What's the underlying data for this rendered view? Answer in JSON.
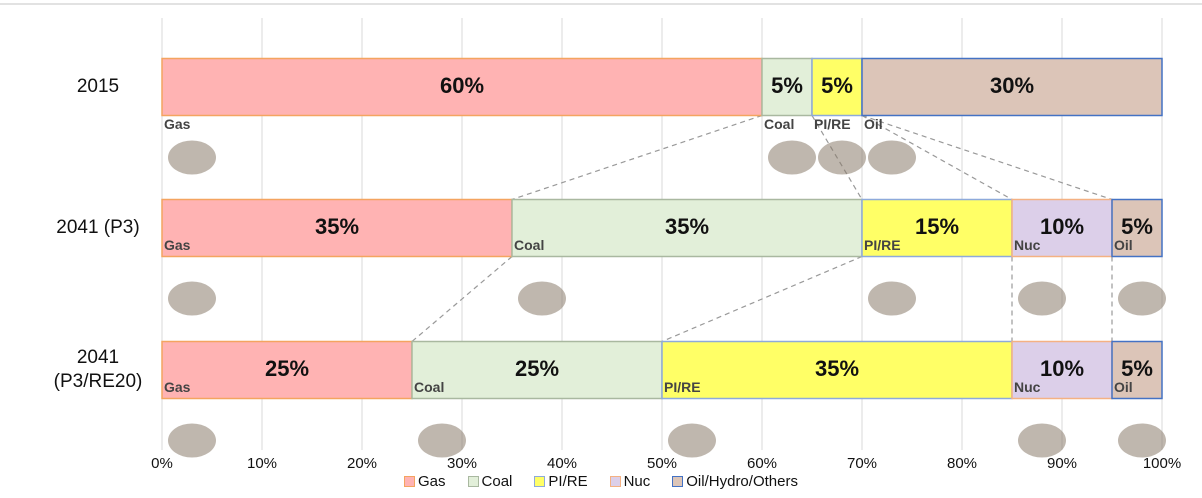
{
  "chart_data": {
    "type": "stacked-bar-horizontal",
    "categories": [
      "2015",
      "2041 (P3)",
      "2041 (P3/RE20)"
    ],
    "series": [
      {
        "name": "Gas",
        "icon_label": "Gas",
        "color": "#ffb3b3",
        "edge": "#f4a460",
        "values": [
          60,
          35,
          25
        ],
        "value_labels": [
          "60%",
          "35%",
          "25%"
        ]
      },
      {
        "name": "Coal",
        "icon_label": "Coal",
        "color": "#e2efd9",
        "edge": "#a9b8a0",
        "values": [
          5,
          35,
          25
        ],
        "value_labels": [
          "5%",
          "35%",
          "25%"
        ]
      },
      {
        "name": "PI/RE",
        "icon_label": "PI/RE",
        "color": "#ffff66",
        "edge": "#8eaadb",
        "values": [
          5,
          15,
          35
        ],
        "value_labels": [
          "5%",
          "15%",
          "35%"
        ]
      },
      {
        "name": "Nuc",
        "icon_label": "Nuc",
        "color": "#dccfe9",
        "edge": "#f4b183",
        "values": [
          0,
          10,
          10
        ],
        "value_labels": [
          null,
          "10%",
          "10%"
        ]
      },
      {
        "name": "Oil/Hydro/Others",
        "icon_label": "Oil",
        "color": "#dcc5b8",
        "edge": "#4472c4",
        "values": [
          30,
          5,
          5
        ],
        "value_labels": [
          "30%",
          "5%",
          "5%"
        ]
      }
    ],
    "xlim": [
      0,
      100
    ],
    "xticks": [
      {
        "value": 0,
        "label": "0%"
      },
      {
        "value": 10,
        "label": "10%"
      },
      {
        "value": 20,
        "label": "20%"
      },
      {
        "value": 30,
        "label": "30%"
      },
      {
        "value": 40,
        "label": "40%"
      },
      {
        "value": 50,
        "label": "50%"
      },
      {
        "value": 60,
        "label": "60%"
      },
      {
        "value": 70,
        "label": "70%"
      },
      {
        "value": 80,
        "label": "80%"
      },
      {
        "value": 90,
        "label": "90%"
      },
      {
        "value": 100,
        "label": "100%"
      }
    ],
    "grid": true,
    "legend": "bottom"
  }
}
